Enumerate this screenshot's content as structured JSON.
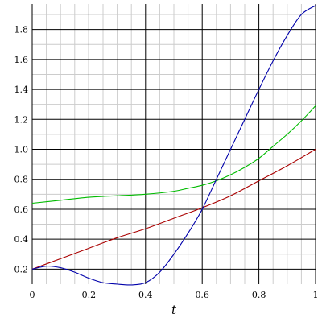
{
  "chart_data": {
    "type": "line",
    "title": "",
    "xlabel": "t",
    "ylabel": "",
    "xlim": [
      0,
      1
    ],
    "ylim": [
      0.1,
      1.97
    ],
    "grid": true,
    "x_ticks": [
      0,
      0.2,
      0.4,
      0.6,
      0.8,
      1
    ],
    "x_tick_labels": [
      "0",
      "0.2",
      "0.4",
      "0.6",
      "0.8",
      "1"
    ],
    "x_minor_ticks": [
      0.05,
      0.1,
      0.15,
      0.25,
      0.3,
      0.35,
      0.45,
      0.5,
      0.55,
      0.65,
      0.7,
      0.75,
      0.85,
      0.9,
      0.95
    ],
    "y_ticks": [
      0.2,
      0.4,
      0.6,
      0.8,
      1.0,
      1.2,
      1.4,
      1.6,
      1.8
    ],
    "y_tick_labels": [
      "0.2",
      "0.4",
      "0.6",
      "0.8",
      "1.0",
      "1.2",
      "1.4",
      "1.6",
      "1.8"
    ],
    "y_minor_ticks": [
      0.3,
      0.5,
      0.7,
      0.9,
      1.1,
      1.3,
      1.5,
      1.7,
      1.9
    ],
    "series": [
      {
        "color": "#aa0000",
        "x": [
          0,
          0.1,
          0.2,
          0.3,
          0.4,
          0.5,
          0.6,
          0.7,
          0.8,
          0.9,
          1.0
        ],
        "values": [
          0.2,
          0.27,
          0.34,
          0.41,
          0.47,
          0.54,
          0.61,
          0.69,
          0.79,
          0.89,
          1.0
        ]
      },
      {
        "color": "#00bb00",
        "x": [
          0,
          0.1,
          0.2,
          0.3,
          0.4,
          0.5,
          0.55,
          0.6,
          0.65,
          0.7,
          0.75,
          0.8,
          0.85,
          0.9,
          0.95,
          1.0
        ],
        "values": [
          0.64,
          0.66,
          0.68,
          0.69,
          0.7,
          0.72,
          0.74,
          0.76,
          0.79,
          0.83,
          0.88,
          0.94,
          1.02,
          1.1,
          1.19,
          1.29
        ]
      },
      {
        "color": "#0000aa",
        "x": [
          0,
          0.05,
          0.1,
          0.15,
          0.2,
          0.25,
          0.3,
          0.35,
          0.4,
          0.45,
          0.5,
          0.55,
          0.6,
          0.65,
          0.7,
          0.75,
          0.8,
          0.85,
          0.9,
          0.95,
          1.0
        ],
        "values": [
          0.2,
          0.22,
          0.21,
          0.18,
          0.14,
          0.11,
          0.1,
          0.095,
          0.11,
          0.18,
          0.3,
          0.44,
          0.6,
          0.8,
          1.0,
          1.2,
          1.4,
          1.59,
          1.76,
          1.9,
          1.96
        ]
      }
    ]
  }
}
